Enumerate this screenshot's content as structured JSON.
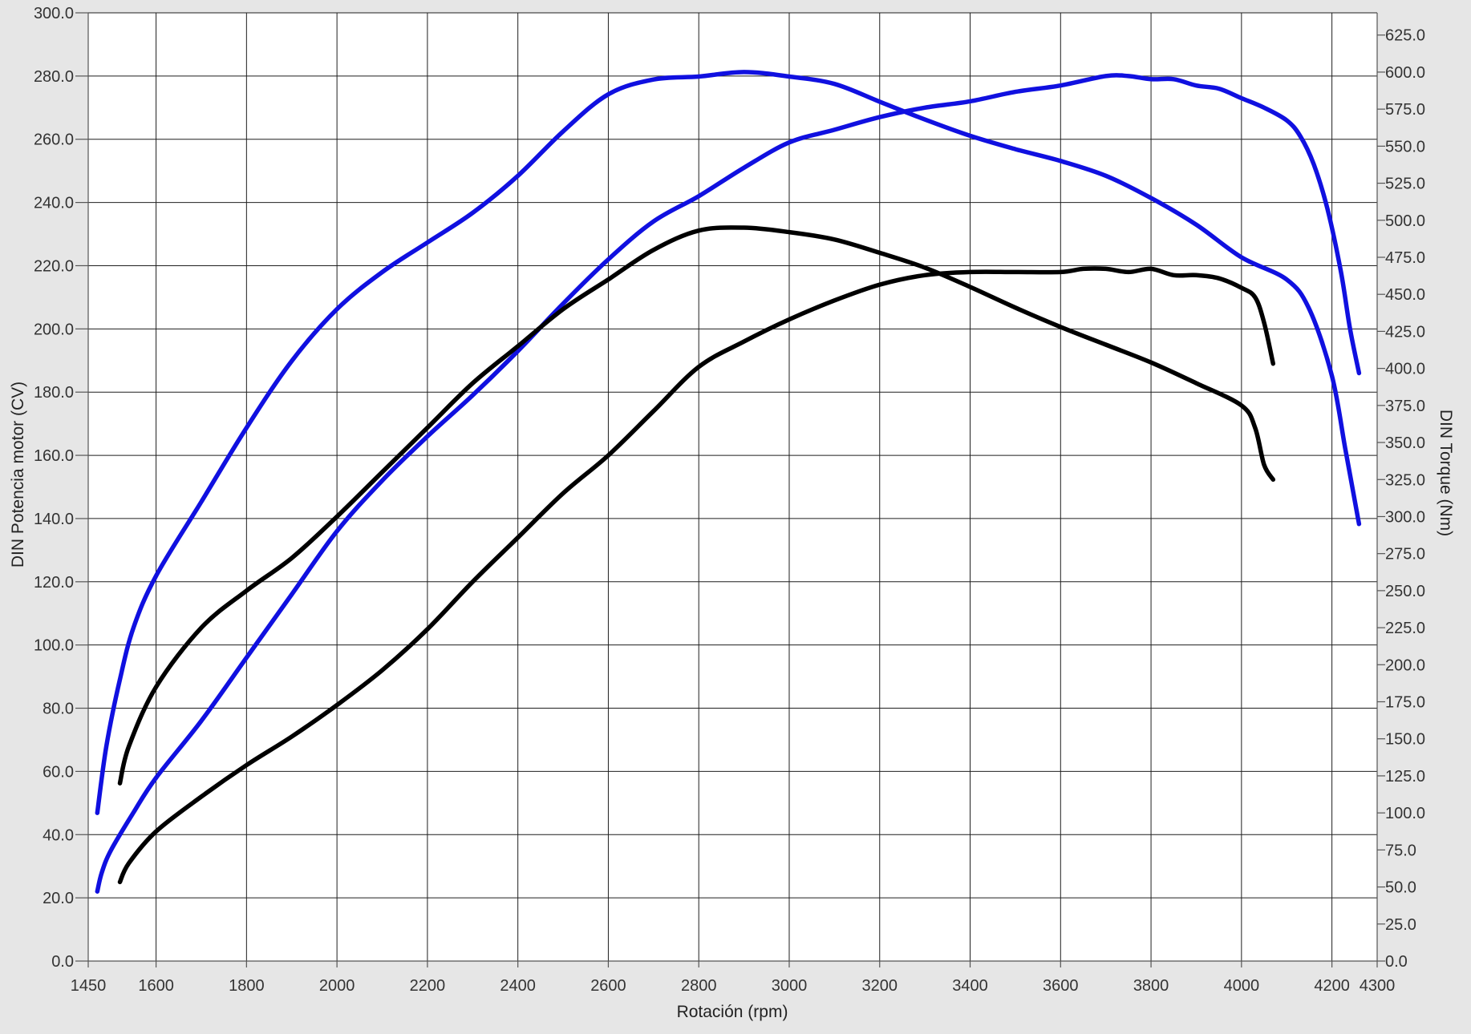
{
  "chart_data": {
    "type": "line",
    "title": "",
    "xlabel": "Rotación (rpm)",
    "ylabel_left": "DIN Potencia motor (CV)",
    "ylabel_right": "DIN Torque (Nm)",
    "xlim": [
      1450,
      4300
    ],
    "ylim_left": [
      0,
      300
    ],
    "ylim_right": [
      0,
      640
    ],
    "x_ticks": [
      1450,
      1600,
      1800,
      2000,
      2200,
      2400,
      2600,
      2800,
      3000,
      3200,
      3400,
      3600,
      3800,
      4000,
      4200,
      4300
    ],
    "x_tick_labels": [
      "1450",
      "1600",
      "1800",
      "2000",
      "2200",
      "2400",
      "2600",
      "2800",
      "3000",
      "3200",
      "3400",
      "3600",
      "3800",
      "4000",
      "4200",
      "4300"
    ],
    "y_left_ticks": [
      0,
      20,
      40,
      60,
      80,
      100,
      120,
      140,
      160,
      180,
      200,
      220,
      240,
      260,
      280,
      300
    ],
    "y_left_tick_labels": [
      "0.0",
      "20.0",
      "40.0",
      "60.0",
      "80.0",
      "100.0",
      "120.0",
      "140.0",
      "160.0",
      "180.0",
      "200.0",
      "220.0",
      "240.0",
      "260.0",
      "280.0",
      "300.0"
    ],
    "y_right_ticks": [
      0,
      25,
      50,
      75,
      100,
      125,
      150,
      175,
      200,
      225,
      250,
      275,
      300,
      325,
      350,
      375,
      400,
      425,
      450,
      475,
      500,
      525,
      550,
      575,
      600,
      625
    ],
    "y_right_tick_labels": [
      "0.0",
      "25.0",
      "50.0",
      "75.0",
      "100.0",
      "125.0",
      "150.0",
      "175.0",
      "200.0",
      "225.0",
      "250.0",
      "275.0",
      "300.0",
      "325.0",
      "350.0",
      "375.0",
      "400.0",
      "425.0",
      "450.0",
      "475.0",
      "500.0",
      "525.0",
      "550.0",
      "575.0",
      "600.0",
      "625.0"
    ],
    "grid": true,
    "legend": "none",
    "series": [
      {
        "axis": "left",
        "color": "#1010e0",
        "points": [
          [
            1470,
            22
          ],
          [
            1480,
            28
          ],
          [
            1500,
            35
          ],
          [
            1550,
            47
          ],
          [
            1600,
            58
          ],
          [
            1700,
            76
          ],
          [
            1800,
            96
          ],
          [
            1900,
            116
          ],
          [
            2000,
            136
          ],
          [
            2100,
            152
          ],
          [
            2200,
            166
          ],
          [
            2300,
            179
          ],
          [
            2400,
            193
          ],
          [
            2500,
            208
          ],
          [
            2600,
            222
          ],
          [
            2700,
            234
          ],
          [
            2800,
            242
          ],
          [
            2900,
            251
          ],
          [
            3000,
            259
          ],
          [
            3100,
            263
          ],
          [
            3200,
            267
          ],
          [
            3300,
            270
          ],
          [
            3400,
            272
          ],
          [
            3500,
            275
          ],
          [
            3600,
            277
          ],
          [
            3700,
            280
          ],
          [
            3750,
            280
          ],
          [
            3800,
            279
          ],
          [
            3850,
            279
          ],
          [
            3900,
            277
          ],
          [
            3950,
            276
          ],
          [
            4000,
            273
          ],
          [
            4050,
            270
          ],
          [
            4100,
            266
          ],
          [
            4130,
            261
          ],
          [
            4160,
            252
          ],
          [
            4190,
            238
          ],
          [
            4220,
            218
          ],
          [
            4240,
            200
          ],
          [
            4260,
            186
          ]
        ]
      },
      {
        "axis": "left",
        "color": "#000000",
        "points": [
          [
            1520,
            25
          ],
          [
            1540,
            31
          ],
          [
            1600,
            41
          ],
          [
            1700,
            52
          ],
          [
            1800,
            62
          ],
          [
            1900,
            71
          ],
          [
            2000,
            81
          ],
          [
            2100,
            92
          ],
          [
            2200,
            105
          ],
          [
            2300,
            120
          ],
          [
            2400,
            134
          ],
          [
            2500,
            148
          ],
          [
            2600,
            160
          ],
          [
            2700,
            174
          ],
          [
            2800,
            188
          ],
          [
            2900,
            196
          ],
          [
            3000,
            203
          ],
          [
            3100,
            209
          ],
          [
            3200,
            214
          ],
          [
            3300,
            217
          ],
          [
            3400,
            218
          ],
          [
            3500,
            218
          ],
          [
            3600,
            218
          ],
          [
            3650,
            219
          ],
          [
            3700,
            219
          ],
          [
            3750,
            218
          ],
          [
            3800,
            219
          ],
          [
            3850,
            217
          ],
          [
            3900,
            217
          ],
          [
            3950,
            216
          ],
          [
            4000,
            213
          ],
          [
            4030,
            210
          ],
          [
            4050,
            202
          ],
          [
            4070,
            189
          ]
        ]
      },
      {
        "axis": "right",
        "color": "#1010e0",
        "points": [
          [
            1470,
            100
          ],
          [
            1490,
            145
          ],
          [
            1520,
            190
          ],
          [
            1550,
            225
          ],
          [
            1600,
            260
          ],
          [
            1700,
            310
          ],
          [
            1800,
            360
          ],
          [
            1900,
            405
          ],
          [
            2000,
            440
          ],
          [
            2100,
            465
          ],
          [
            2200,
            485
          ],
          [
            2300,
            505
          ],
          [
            2400,
            530
          ],
          [
            2500,
            560
          ],
          [
            2600,
            585
          ],
          [
            2700,
            595
          ],
          [
            2800,
            597
          ],
          [
            2900,
            600
          ],
          [
            3000,
            597
          ],
          [
            3100,
            592
          ],
          [
            3200,
            580
          ],
          [
            3300,
            568
          ],
          [
            3400,
            557
          ],
          [
            3500,
            548
          ],
          [
            3600,
            540
          ],
          [
            3700,
            530
          ],
          [
            3800,
            515
          ],
          [
            3900,
            497
          ],
          [
            4000,
            475
          ],
          [
            4100,
            460
          ],
          [
            4150,
            440
          ],
          [
            4200,
            395
          ],
          [
            4230,
            345
          ],
          [
            4260,
            295
          ]
        ]
      },
      {
        "axis": "right",
        "color": "#000000",
        "points": [
          [
            1520,
            120
          ],
          [
            1540,
            145
          ],
          [
            1600,
            185
          ],
          [
            1700,
            225
          ],
          [
            1800,
            250
          ],
          [
            1900,
            272
          ],
          [
            2000,
            300
          ],
          [
            2100,
            330
          ],
          [
            2200,
            360
          ],
          [
            2300,
            390
          ],
          [
            2400,
            415
          ],
          [
            2500,
            440
          ],
          [
            2600,
            460
          ],
          [
            2700,
            480
          ],
          [
            2800,
            493
          ],
          [
            2900,
            495
          ],
          [
            3000,
            492
          ],
          [
            3100,
            487
          ],
          [
            3200,
            478
          ],
          [
            3300,
            468
          ],
          [
            3400,
            455
          ],
          [
            3500,
            441
          ],
          [
            3600,
            428
          ],
          [
            3700,
            416
          ],
          [
            3800,
            404
          ],
          [
            3900,
            390
          ],
          [
            4000,
            375
          ],
          [
            4030,
            360
          ],
          [
            4050,
            335
          ],
          [
            4070,
            325
          ]
        ]
      }
    ]
  }
}
